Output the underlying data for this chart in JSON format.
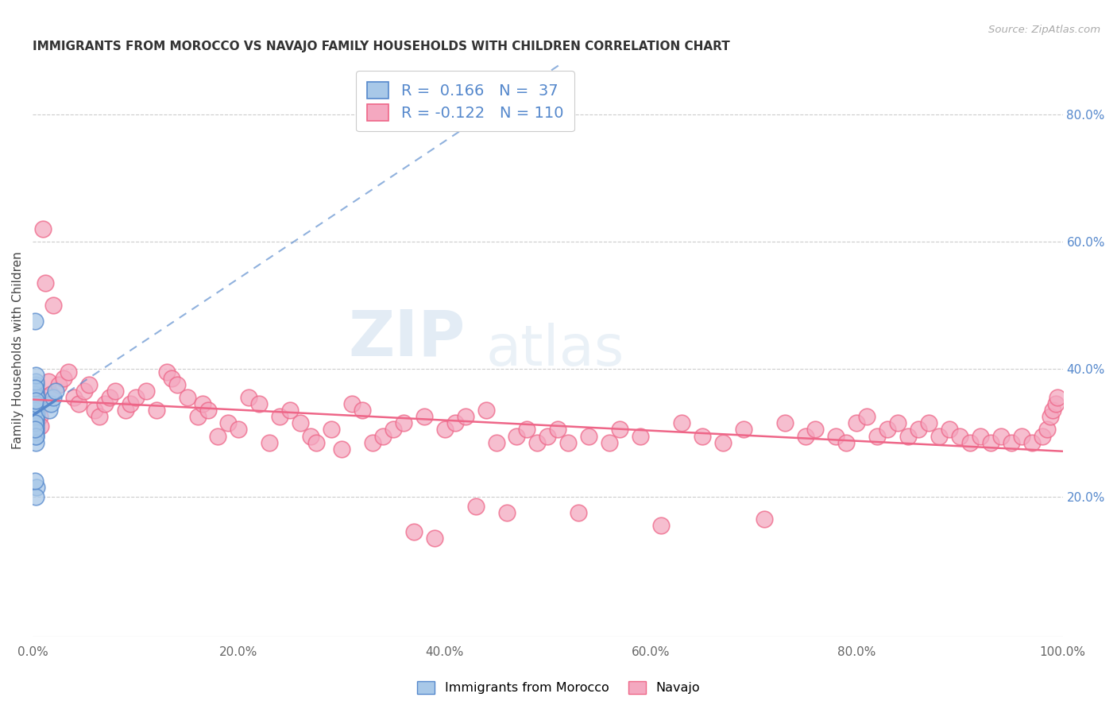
{
  "title": "IMMIGRANTS FROM MOROCCO VS NAVAJO FAMILY HOUSEHOLDS WITH CHILDREN CORRELATION CHART",
  "source": "Source: ZipAtlas.com",
  "ylabel": "Family Households with Children",
  "ylabel_right_ticks": [
    "20.0%",
    "40.0%",
    "60.0%",
    "80.0%"
  ],
  "ylabel_right_vals": [
    0.2,
    0.4,
    0.6,
    0.8
  ],
  "xlim": [
    0.0,
    1.0
  ],
  "ylim": [
    -0.02,
    0.88
  ],
  "legend_R1": "0.166",
  "legend_N1": "37",
  "legend_R2": "-0.122",
  "legend_N2": "110",
  "legend_label1": "Immigrants from Morocco",
  "legend_label2": "Navajo",
  "blue_color": "#a8c8e8",
  "pink_color": "#f4a8c0",
  "blue_line_color": "#5588cc",
  "pink_line_color": "#ee6688",
  "watermark_zip": "ZIP",
  "watermark_atlas": "atlas",
  "blue_x": [
    0.002,
    0.003,
    0.003,
    0.004,
    0.002,
    0.003,
    0.003,
    0.002,
    0.003,
    0.004,
    0.003,
    0.002,
    0.003,
    0.003,
    0.002,
    0.004,
    0.003,
    0.003,
    0.002,
    0.003,
    0.002,
    0.003,
    0.003,
    0.002,
    0.003,
    0.002,
    0.003,
    0.003,
    0.002,
    0.003,
    0.004,
    0.003,
    0.002,
    0.016,
    0.018,
    0.02,
    0.022
  ],
  "blue_y": [
    0.355,
    0.36,
    0.375,
    0.33,
    0.37,
    0.365,
    0.34,
    0.345,
    0.32,
    0.35,
    0.315,
    0.325,
    0.295,
    0.305,
    0.36,
    0.355,
    0.38,
    0.39,
    0.335,
    0.31,
    0.475,
    0.3,
    0.325,
    0.315,
    0.345,
    0.37,
    0.285,
    0.295,
    0.305,
    0.35,
    0.215,
    0.2,
    0.225,
    0.335,
    0.345,
    0.355,
    0.365
  ],
  "pink_x": [
    0.002,
    0.003,
    0.004,
    0.005,
    0.007,
    0.008,
    0.01,
    0.012,
    0.015,
    0.018,
    0.02,
    0.025,
    0.03,
    0.035,
    0.04,
    0.045,
    0.05,
    0.055,
    0.06,
    0.065,
    0.07,
    0.075,
    0.08,
    0.09,
    0.095,
    0.1,
    0.11,
    0.12,
    0.13,
    0.135,
    0.14,
    0.15,
    0.16,
    0.165,
    0.17,
    0.18,
    0.19,
    0.2,
    0.21,
    0.22,
    0.23,
    0.24,
    0.25,
    0.26,
    0.27,
    0.275,
    0.29,
    0.3,
    0.31,
    0.32,
    0.33,
    0.34,
    0.35,
    0.36,
    0.37,
    0.38,
    0.39,
    0.4,
    0.41,
    0.42,
    0.43,
    0.44,
    0.45,
    0.46,
    0.47,
    0.48,
    0.49,
    0.5,
    0.51,
    0.52,
    0.53,
    0.54,
    0.56,
    0.57,
    0.59,
    0.61,
    0.63,
    0.65,
    0.67,
    0.69,
    0.71,
    0.73,
    0.75,
    0.76,
    0.78,
    0.79,
    0.8,
    0.81,
    0.82,
    0.83,
    0.84,
    0.85,
    0.86,
    0.87,
    0.88,
    0.89,
    0.9,
    0.91,
    0.92,
    0.93,
    0.94,
    0.95,
    0.96,
    0.97,
    0.98,
    0.985,
    0.988,
    0.99,
    0.993,
    0.995
  ],
  "pink_y": [
    0.355,
    0.335,
    0.36,
    0.345,
    0.325,
    0.31,
    0.62,
    0.535,
    0.38,
    0.36,
    0.5,
    0.375,
    0.385,
    0.395,
    0.355,
    0.345,
    0.365,
    0.375,
    0.335,
    0.325,
    0.345,
    0.355,
    0.365,
    0.335,
    0.345,
    0.355,
    0.365,
    0.335,
    0.395,
    0.385,
    0.375,
    0.355,
    0.325,
    0.345,
    0.335,
    0.295,
    0.315,
    0.305,
    0.355,
    0.345,
    0.285,
    0.325,
    0.335,
    0.315,
    0.295,
    0.285,
    0.305,
    0.275,
    0.345,
    0.335,
    0.285,
    0.295,
    0.305,
    0.315,
    0.145,
    0.325,
    0.135,
    0.305,
    0.315,
    0.325,
    0.185,
    0.335,
    0.285,
    0.175,
    0.295,
    0.305,
    0.285,
    0.295,
    0.305,
    0.285,
    0.175,
    0.295,
    0.285,
    0.305,
    0.295,
    0.155,
    0.315,
    0.295,
    0.285,
    0.305,
    0.165,
    0.315,
    0.295,
    0.305,
    0.295,
    0.285,
    0.315,
    0.325,
    0.295,
    0.305,
    0.315,
    0.295,
    0.305,
    0.315,
    0.295,
    0.305,
    0.295,
    0.285,
    0.295,
    0.285,
    0.295,
    0.285,
    0.295,
    0.285,
    0.295,
    0.305,
    0.325,
    0.335,
    0.345,
    0.355
  ]
}
